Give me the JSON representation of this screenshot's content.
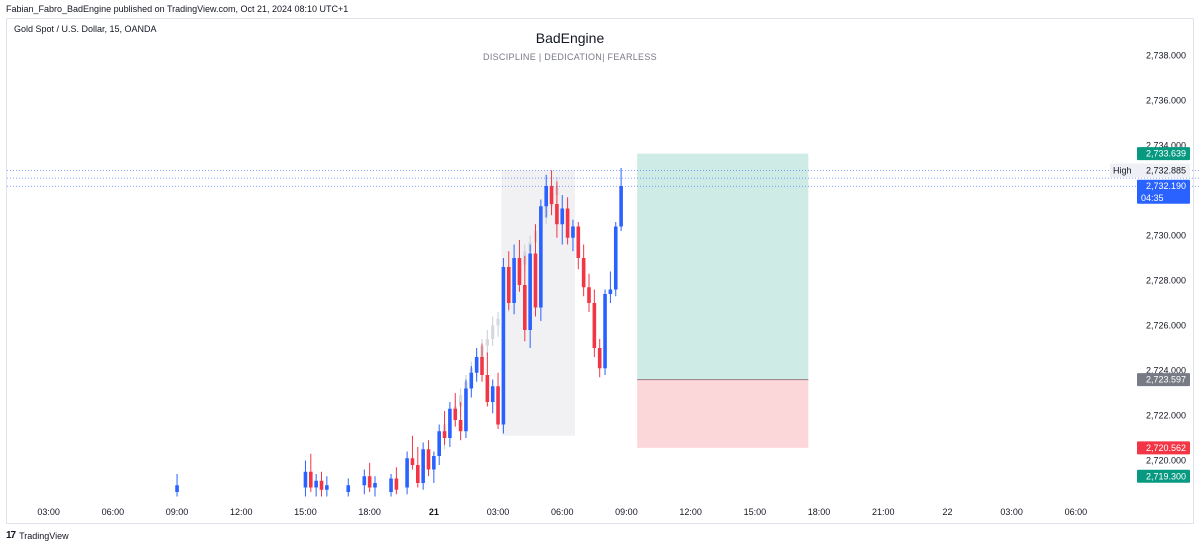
{
  "header": {
    "published": "Fabian_Fabro_BadEngine published on TradingView.com, Oct 21, 2024 08:10 UTC+1"
  },
  "symbol_label": "Gold Spot / U.S. Dollar, 15, OANDA",
  "footer": {
    "logo_text": "TradingView",
    "logo_icon": "tradingview-logo-icon"
  },
  "colors": {
    "up": "#2962ff",
    "down": "#f23645",
    "target": "#089981",
    "stop": "#f23645",
    "entry": "#787b86"
  },
  "chart_data": {
    "type": "candlestick",
    "title": "BadEngine",
    "subtitle": "DISCIPLINE   |   DEDICATION|   FEARLESS",
    "ylim": [
      2718.4,
      2739.2
    ],
    "y_ticks": [
      {
        "value": 2720,
        "label": "2,720.000"
      },
      {
        "value": 2722,
        "label": "2,722.000"
      },
      {
        "value": 2724,
        "label": "2,724.000"
      },
      {
        "value": 2726,
        "label": "2,726.000"
      },
      {
        "value": 2728,
        "label": "2,728.000"
      },
      {
        "value": 2730,
        "label": "2,730.000"
      },
      {
        "value": 2732,
        "label": "2,732.000"
      },
      {
        "value": 2734,
        "label": "2,734.000"
      },
      {
        "value": 2736,
        "label": "2,736.000"
      },
      {
        "value": 2738,
        "label": "2,738.000"
      }
    ],
    "x_ticks": [
      {
        "bar": -81,
        "label": "03:00"
      },
      {
        "bar": -69,
        "label": "06:00"
      },
      {
        "bar": -57,
        "label": "09:00"
      },
      {
        "bar": -45,
        "label": "12:00"
      },
      {
        "bar": -33,
        "label": "15:00"
      },
      {
        "bar": -21,
        "label": "18:00"
      },
      {
        "bar": -9,
        "label": "21",
        "bold": true
      },
      {
        "bar": 3,
        "label": "03:00"
      },
      {
        "bar": 15,
        "label": "06:00"
      },
      {
        "bar": 27,
        "label": "09:00"
      },
      {
        "bar": 39,
        "label": "12:00"
      },
      {
        "bar": 51,
        "label": "15:00"
      },
      {
        "bar": 63,
        "label": "18:00"
      },
      {
        "bar": 75,
        "label": "21:00"
      },
      {
        "bar": 87,
        "label": "22"
      },
      {
        "bar": 99,
        "label": "03:00"
      },
      {
        "bar": 111,
        "label": "06:00"
      }
    ],
    "candles": [
      {
        "bar": -57,
        "o": 2718.6,
        "h": 2719.4,
        "l": 2718.4,
        "c": 2718.9
      },
      {
        "bar": -33,
        "o": 2718.8,
        "h": 2720.0,
        "l": 2718.4,
        "c": 2719.5
      },
      {
        "bar": -32,
        "o": 2719.5,
        "h": 2720.3,
        "l": 2718.6,
        "c": 2718.8
      },
      {
        "bar": -31,
        "o": 2718.8,
        "h": 2719.4,
        "l": 2718.4,
        "c": 2719.1
      },
      {
        "bar": -30,
        "o": 2719.1,
        "h": 2719.5,
        "l": 2718.4,
        "c": 2718.7
      },
      {
        "bar": -29,
        "o": 2718.7,
        "h": 2719.3,
        "l": 2718.4,
        "c": 2718.9
      },
      {
        "bar": -25,
        "o": 2718.6,
        "h": 2719.2,
        "l": 2718.4,
        "c": 2718.9
      },
      {
        "bar": -22,
        "o": 2718.9,
        "h": 2719.6,
        "l": 2718.5,
        "c": 2719.3
      },
      {
        "bar": -21,
        "o": 2719.3,
        "h": 2719.9,
        "l": 2718.6,
        "c": 2718.8
      },
      {
        "bar": -20,
        "o": 2718.8,
        "h": 2719.3,
        "l": 2718.4,
        "c": 2719.0
      },
      {
        "bar": -17,
        "o": 2718.6,
        "h": 2719.4,
        "l": 2718.4,
        "c": 2719.2
      },
      {
        "bar": -16,
        "o": 2719.2,
        "h": 2719.7,
        "l": 2718.5,
        "c": 2718.7
      },
      {
        "bar": -14,
        "o": 2718.8,
        "h": 2720.4,
        "l": 2718.5,
        "c": 2720.1
      },
      {
        "bar": -13,
        "o": 2720.1,
        "h": 2721.1,
        "l": 2719.6,
        "c": 2719.8
      },
      {
        "bar": -12,
        "o": 2719.8,
        "h": 2720.6,
        "l": 2718.8,
        "c": 2719.0
      },
      {
        "bar": -11,
        "o": 2719.0,
        "h": 2720.8,
        "l": 2718.7,
        "c": 2720.5
      },
      {
        "bar": -10,
        "o": 2720.5,
        "h": 2720.9,
        "l": 2719.3,
        "c": 2719.6
      },
      {
        "bar": -9,
        "o": 2719.6,
        "h": 2720.4,
        "l": 2719.0,
        "c": 2720.2
      },
      {
        "bar": -8,
        "o": 2720.2,
        "h": 2721.6,
        "l": 2719.8,
        "c": 2721.3
      },
      {
        "bar": -7,
        "o": 2721.3,
        "h": 2722.2,
        "l": 2720.7,
        "c": 2721.0
      },
      {
        "bar": -6,
        "o": 2721.0,
        "h": 2722.6,
        "l": 2720.6,
        "c": 2722.3
      },
      {
        "bar": -5,
        "o": 2722.3,
        "h": 2723.0,
        "l": 2721.5,
        "c": 2721.8
      },
      {
        "bar": -4,
        "o": 2721.8,
        "h": 2722.6,
        "l": 2720.9,
        "c": 2721.3
      },
      {
        "bar": -3,
        "o": 2721.3,
        "h": 2723.6,
        "l": 2721.0,
        "c": 2723.2
      },
      {
        "bar": -2,
        "o": 2723.2,
        "h": 2724.2,
        "l": 2722.8,
        "c": 2723.9
      },
      {
        "bar": -1,
        "o": 2723.9,
        "h": 2725.0,
        "l": 2723.5,
        "c": 2724.6
      },
      {
        "bar": 0,
        "o": 2724.6,
        "h": 2725.2,
        "l": 2723.5,
        "c": 2723.8
      },
      {
        "bar": 1,
        "o": 2723.8,
        "h": 2724.8,
        "l": 2722.4,
        "c": 2722.6
      },
      {
        "bar": 2,
        "o": 2722.6,
        "h": 2723.6,
        "l": 2722.1,
        "c": 2723.3
      },
      {
        "bar": 3,
        "o": 2723.3,
        "h": 2723.9,
        "l": 2721.4,
        "c": 2721.6
      },
      {
        "bar": 4,
        "o": 2721.6,
        "h": 2729.0,
        "l": 2721.2,
        "c": 2728.6
      },
      {
        "bar": 5,
        "o": 2728.6,
        "h": 2729.3,
        "l": 2726.7,
        "c": 2727.0
      },
      {
        "bar": 6,
        "o": 2727.0,
        "h": 2729.6,
        "l": 2726.5,
        "c": 2729.0
      },
      {
        "bar": 7,
        "o": 2729.0,
        "h": 2729.8,
        "l": 2727.5,
        "c": 2727.8
      },
      {
        "bar": 8,
        "o": 2727.8,
        "h": 2729.1,
        "l": 2725.3,
        "c": 2725.8
      },
      {
        "bar": 9,
        "o": 2725.8,
        "h": 2729.6,
        "l": 2725.0,
        "c": 2729.2
      },
      {
        "bar": 10,
        "o": 2729.2,
        "h": 2730.5,
        "l": 2726.4,
        "c": 2726.8
      },
      {
        "bar": 11,
        "o": 2726.8,
        "h": 2731.6,
        "l": 2726.2,
        "c": 2731.3
      },
      {
        "bar": 12,
        "o": 2731.3,
        "h": 2732.7,
        "l": 2730.8,
        "c": 2732.2
      },
      {
        "bar": 13,
        "o": 2732.2,
        "h": 2732.9,
        "l": 2730.9,
        "c": 2731.4
      },
      {
        "bar": 14,
        "o": 2731.4,
        "h": 2732.4,
        "l": 2729.9,
        "c": 2730.5
      },
      {
        "bar": 15,
        "o": 2730.5,
        "h": 2731.8,
        "l": 2729.6,
        "c": 2731.2
      },
      {
        "bar": 16,
        "o": 2731.2,
        "h": 2731.7,
        "l": 2729.6,
        "c": 2729.9
      },
      {
        "bar": 17,
        "o": 2729.9,
        "h": 2730.7,
        "l": 2729.3,
        "c": 2730.4
      },
      {
        "bar": 18,
        "o": 2730.4,
        "h": 2730.6,
        "l": 2728.5,
        "c": 2729.0
      },
      {
        "bar": 19,
        "o": 2729.0,
        "h": 2729.6,
        "l": 2727.3,
        "c": 2727.7
      },
      {
        "bar": 20,
        "o": 2727.7,
        "h": 2728.3,
        "l": 2726.6,
        "c": 2727.0
      },
      {
        "bar": 21,
        "o": 2727.0,
        "h": 2727.6,
        "l": 2724.6,
        "c": 2725.0
      },
      {
        "bar": 22,
        "o": 2725.0,
        "h": 2725.4,
        "l": 2723.7,
        "c": 2724.1
      },
      {
        "bar": 23,
        "o": 2724.1,
        "h": 2727.6,
        "l": 2723.8,
        "c": 2727.4
      },
      {
        "bar": 24,
        "o": 2727.4,
        "h": 2728.4,
        "l": 2727.0,
        "c": 2727.6
      },
      {
        "bar": 25,
        "o": 2727.6,
        "h": 2730.6,
        "l": 2727.3,
        "c": 2730.4
      },
      {
        "bar": 26,
        "o": 2730.4,
        "h": 2733.0,
        "l": 2730.2,
        "c": 2732.2
      }
    ],
    "shaded_range": {
      "from_bar": 4,
      "to_bar": 17,
      "low": 2721.1,
      "high": 2732.9
    },
    "ghost_projection": [
      {
        "bar": -7,
        "o": 2721.0,
        "h": 2721.9,
        "l": 2720.5,
        "c": 2721.6
      },
      {
        "bar": -6,
        "o": 2721.6,
        "h": 2722.4,
        "l": 2721.2,
        "c": 2722.0
      },
      {
        "bar": -5,
        "o": 2722.0,
        "h": 2722.7,
        "l": 2721.6,
        "c": 2722.4
      },
      {
        "bar": -4,
        "o": 2722.4,
        "h": 2723.2,
        "l": 2722.0,
        "c": 2722.9
      },
      {
        "bar": -3,
        "o": 2722.9,
        "h": 2723.8,
        "l": 2722.6,
        "c": 2723.5
      },
      {
        "bar": -2,
        "o": 2723.5,
        "h": 2724.4,
        "l": 2723.2,
        "c": 2724.1
      },
      {
        "bar": -1,
        "o": 2724.1,
        "h": 2724.8,
        "l": 2723.7,
        "c": 2724.5
      },
      {
        "bar": 0,
        "o": 2724.5,
        "h": 2725.4,
        "l": 2724.2,
        "c": 2725.1
      },
      {
        "bar": 1,
        "o": 2725.1,
        "h": 2725.8,
        "l": 2724.7,
        "c": 2725.4
      },
      {
        "bar": 2,
        "o": 2725.4,
        "h": 2726.4,
        "l": 2725.1,
        "c": 2726.0
      },
      {
        "bar": 3,
        "o": 2726.0,
        "h": 2726.6,
        "l": 2725.5,
        "c": 2726.3
      },
      {
        "bar": 4,
        "o": 2726.3,
        "h": 2727.3,
        "l": 2726.0,
        "c": 2727.0
      },
      {
        "bar": 5,
        "o": 2727.0,
        "h": 2727.8,
        "l": 2726.6,
        "c": 2727.5
      },
      {
        "bar": 6,
        "o": 2727.5,
        "h": 2728.6,
        "l": 2727.2,
        "c": 2728.3
      },
      {
        "bar": 7,
        "o": 2728.3,
        "h": 2729.0,
        "l": 2727.9,
        "c": 2728.7
      },
      {
        "bar": 8,
        "o": 2728.7,
        "h": 2729.6,
        "l": 2728.4,
        "c": 2729.3
      },
      {
        "bar": 9,
        "o": 2729.3,
        "h": 2730.0,
        "l": 2728.9,
        "c": 2729.7
      },
      {
        "bar": 10,
        "o": 2729.7,
        "h": 2730.5,
        "l": 2729.4,
        "c": 2730.2
      },
      {
        "bar": 11,
        "o": 2730.2,
        "h": 2731.1,
        "l": 2729.9,
        "c": 2730.8
      },
      {
        "bar": 12,
        "o": 2730.8,
        "h": 2731.6,
        "l": 2730.5,
        "c": 2731.3
      },
      {
        "bar": 13,
        "o": 2731.3,
        "h": 2732.1,
        "l": 2731.0,
        "c": 2731.8
      },
      {
        "bar": 14,
        "o": 2731.8,
        "h": 2732.6,
        "l": 2731.5,
        "c": 2732.2
      }
    ],
    "position": {
      "from_bar": 29,
      "to_bar": 61,
      "entry": 2723.597,
      "target": 2733.639,
      "stop": 2720.562
    },
    "price_lines": [
      2732.19,
      2732.885,
      2732.55
    ],
    "price_labels": [
      {
        "name": "target-price-label",
        "value": 2733.639,
        "label": "2,733.639",
        "color": "#089981"
      },
      {
        "name": "last-price-label",
        "value": 2732.19,
        "label": "2,732.190",
        "sub": "04:35",
        "color": "#2962ff"
      },
      {
        "name": "entry-price-label",
        "value": 2723.597,
        "label": "2,723.597",
        "color": "#787b86"
      },
      {
        "name": "stop-price-label",
        "value": 2720.562,
        "label": "2,720.562",
        "color": "#f23645"
      },
      {
        "name": "low-price-label",
        "value": 2719.3,
        "label": "2,719.300",
        "color": "#089981"
      }
    ],
    "high_marker": {
      "value": 2732.885,
      "tag": "High",
      "label": "2,732.885"
    }
  }
}
